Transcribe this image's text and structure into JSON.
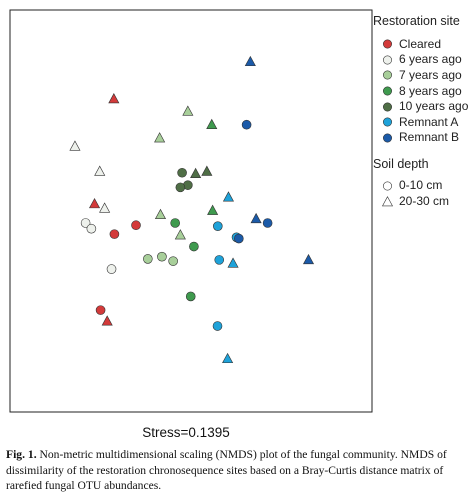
{
  "chart_data": {
    "type": "scatter",
    "title": "",
    "xlabel": "",
    "ylabel": "",
    "xlim": [
      0,
      100
    ],
    "ylim": [
      0,
      100
    ],
    "grid": false,
    "legend_placement": "right",
    "legend": {
      "site_title": "Restoration site",
      "soil_title": "Soil depth"
    },
    "sites": [
      {
        "key": "cleared",
        "name": "Cleared",
        "color": "#d33a3a"
      },
      {
        "key": "6y",
        "name": "6 years ago",
        "color": "#eef1ec"
      },
      {
        "key": "7y",
        "name": "7 years ago",
        "color": "#a8cf9a"
      },
      {
        "key": "8y",
        "name": "8 years ago",
        "color": "#3f9a4e"
      },
      {
        "key": "10y",
        "name": "10 years ago",
        "color": "#4f6e46"
      },
      {
        "key": "ra",
        "name": "Remnant A",
        "color": "#1ea2d9"
      },
      {
        "key": "rb",
        "name": "Remnant B",
        "color": "#1b5aa8"
      }
    ],
    "depths": [
      {
        "key": "0-10",
        "name": "0-10 cm",
        "shape": "circle"
      },
      {
        "key": "20-30",
        "name": "20-30 cm",
        "shape": "triangle"
      }
    ],
    "points": [
      {
        "site": "cleared",
        "depth": "20-30",
        "x": 23.9,
        "y": 84.6
      },
      {
        "site": "cleared",
        "depth": "20-30",
        "x": 17.2,
        "y": 51.6
      },
      {
        "site": "cleared",
        "depth": "0-10",
        "x": 24.1,
        "y": 42.1
      },
      {
        "site": "cleared",
        "depth": "0-10",
        "x": 31.6,
        "y": 44.9
      },
      {
        "site": "cleared",
        "depth": "0-10",
        "x": 19.3,
        "y": 18.2
      },
      {
        "site": "cleared",
        "depth": "20-30",
        "x": 21.6,
        "y": 14.7
      },
      {
        "site": "6y",
        "depth": "20-30",
        "x": 10.4,
        "y": 69.7
      },
      {
        "site": "6y",
        "depth": "20-30",
        "x": 19.0,
        "y": 61.8
      },
      {
        "site": "6y",
        "depth": "20-30",
        "x": 20.7,
        "y": 50.2
      },
      {
        "site": "6y",
        "depth": "0-10",
        "x": 14.1,
        "y": 45.6
      },
      {
        "site": "6y",
        "depth": "0-10",
        "x": 16.1,
        "y": 43.8
      },
      {
        "site": "6y",
        "depth": "0-10",
        "x": 23.1,
        "y": 31.1
      },
      {
        "site": "7y",
        "depth": "20-30",
        "x": 49.6,
        "y": 80.7
      },
      {
        "site": "7y",
        "depth": "20-30",
        "x": 39.8,
        "y": 72.3
      },
      {
        "site": "7y",
        "depth": "20-30",
        "x": 40.1,
        "y": 48.2
      },
      {
        "site": "7y",
        "depth": "20-30",
        "x": 47.0,
        "y": 41.8
      },
      {
        "site": "7y",
        "depth": "0-10",
        "x": 35.7,
        "y": 34.3
      },
      {
        "site": "7y",
        "depth": "0-10",
        "x": 40.6,
        "y": 35.0
      },
      {
        "site": "7y",
        "depth": "0-10",
        "x": 44.5,
        "y": 33.6
      },
      {
        "site": "8y",
        "depth": "20-30",
        "x": 57.9,
        "y": 76.5
      },
      {
        "site": "8y",
        "depth": "0-10",
        "x": 45.2,
        "y": 45.6
      },
      {
        "site": "8y",
        "depth": "20-30",
        "x": 58.2,
        "y": 49.5
      },
      {
        "site": "8y",
        "depth": "0-10",
        "x": 51.7,
        "y": 38.2
      },
      {
        "site": "8y",
        "depth": "0-10",
        "x": 50.6,
        "y": 22.5
      },
      {
        "site": "10y",
        "depth": "0-10",
        "x": 47.6,
        "y": 61.4
      },
      {
        "site": "10y",
        "depth": "20-30",
        "x": 52.3,
        "y": 61.1
      },
      {
        "site": "10y",
        "depth": "20-30",
        "x": 56.2,
        "y": 61.8
      },
      {
        "site": "10y",
        "depth": "0-10",
        "x": 49.6,
        "y": 57.5
      },
      {
        "site": "10y",
        "depth": "0-10",
        "x": 47.0,
        "y": 56.8
      },
      {
        "site": "ra",
        "depth": "20-30",
        "x": 63.7,
        "y": 53.7
      },
      {
        "site": "ra",
        "depth": "0-10",
        "x": 60.0,
        "y": 44.6
      },
      {
        "site": "ra",
        "depth": "0-10",
        "x": 66.5,
        "y": 41.1
      },
      {
        "site": "ra",
        "depth": "0-10",
        "x": 60.5,
        "y": 34.0
      },
      {
        "site": "ra",
        "depth": "20-30",
        "x": 65.3,
        "y": 32.9
      },
      {
        "site": "ra",
        "depth": "0-10",
        "x": 59.9,
        "y": 13.2
      },
      {
        "site": "ra",
        "depth": "20-30",
        "x": 63.4,
        "y": 2.9
      },
      {
        "site": "rb",
        "depth": "20-30",
        "x": 71.3,
        "y": 96.3
      },
      {
        "site": "rb",
        "depth": "0-10",
        "x": 70.0,
        "y": 76.5
      },
      {
        "site": "rb",
        "depth": "20-30",
        "x": 73.3,
        "y": 46.9
      },
      {
        "site": "rb",
        "depth": "0-10",
        "x": 77.3,
        "y": 45.6
      },
      {
        "site": "rb",
        "depth": "0-10",
        "x": 67.3,
        "y": 40.7
      },
      {
        "site": "rb",
        "depth": "20-30",
        "x": 91.5,
        "y": 34.0
      }
    ],
    "annotation": "Stress=0.1395"
  },
  "caption": {
    "label": "Fig. 1.",
    "text": "Non-metric multidimensional scaling (NMDS) plot of the fungal community. NMDS of dissimilarity of the restoration chronosequence sites based on a Bray-Curtis distance matrix of rarefied fungal OTU abundances."
  }
}
